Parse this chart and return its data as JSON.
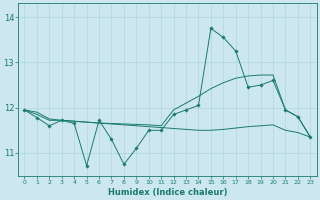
{
  "xlabel": "Humidex (Indice chaleur)",
  "xlim": [
    -0.5,
    23.5
  ],
  "ylim": [
    10.5,
    14.3
  ],
  "yticks": [
    11,
    12,
    13,
    14
  ],
  "xticks": [
    0,
    1,
    2,
    3,
    4,
    5,
    6,
    7,
    8,
    9,
    10,
    11,
    12,
    13,
    14,
    15,
    16,
    17,
    18,
    19,
    20,
    21,
    22,
    23
  ],
  "bg_color": "#cce8ee",
  "line_color": "#1a7a6e",
  "grid_color": "#b0d4dc",
  "line1_x": [
    0,
    1,
    2,
    3,
    4,
    5,
    6,
    7,
    8,
    9,
    10,
    11,
    12,
    13,
    14,
    15,
    16,
    17,
    18,
    19,
    20,
    21,
    22,
    23
  ],
  "line1_y": [
    11.95,
    11.78,
    11.6,
    11.72,
    11.65,
    10.72,
    11.72,
    11.3,
    10.75,
    11.1,
    11.5,
    11.5,
    11.85,
    11.95,
    12.05,
    13.75,
    13.55,
    13.25,
    12.45,
    12.5,
    12.6,
    11.95,
    11.8,
    11.35
  ],
  "line2_x": [
    0,
    1,
    2,
    3,
    4,
    5,
    6,
    7,
    8,
    9,
    10,
    11,
    12,
    13,
    14,
    15,
    16,
    17,
    18,
    19,
    20,
    21,
    22,
    23
  ],
  "line2_y": [
    11.95,
    11.9,
    11.75,
    11.72,
    11.7,
    11.68,
    11.66,
    11.64,
    11.62,
    11.6,
    11.58,
    11.56,
    11.54,
    11.52,
    11.5,
    11.5,
    11.52,
    11.55,
    11.58,
    11.6,
    11.62,
    11.5,
    11.45,
    11.35
  ],
  "line3_x": [
    0,
    1,
    2,
    3,
    4,
    5,
    6,
    7,
    8,
    9,
    10,
    11,
    12,
    13,
    14,
    15,
    16,
    17,
    18,
    19,
    20,
    21,
    22,
    23
  ],
  "line3_y": [
    11.95,
    11.85,
    11.72,
    11.72,
    11.7,
    11.68,
    11.66,
    11.65,
    11.64,
    11.63,
    11.62,
    11.6,
    11.95,
    12.1,
    12.25,
    12.42,
    12.55,
    12.65,
    12.7,
    12.72,
    12.72,
    11.95,
    11.8,
    11.35
  ]
}
